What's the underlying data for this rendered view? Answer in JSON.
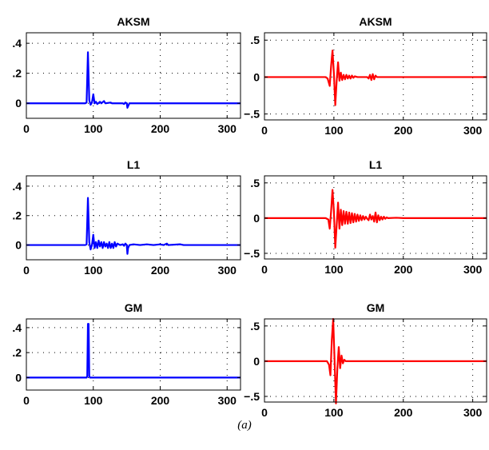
{
  "caption": "(a)",
  "chart_data": [
    {
      "type": "line",
      "title": "AKSM",
      "color": "#0000ff",
      "xlim": [
        0,
        320
      ],
      "ylim": [
        -0.1,
        0.47
      ],
      "xticks": [
        0,
        100,
        200,
        300
      ],
      "yticks": [
        0,
        0.2,
        0.4
      ],
      "points": [
        [
          0,
          0
        ],
        [
          88,
          0
        ],
        [
          90,
          0.005
        ],
        [
          92,
          0.34
        ],
        [
          94,
          0.02
        ],
        [
          96,
          -0.01
        ],
        [
          98,
          0.005
        ],
        [
          100,
          0.06
        ],
        [
          102,
          0.0
        ],
        [
          104,
          0.01
        ],
        [
          106,
          -0.005
        ],
        [
          110,
          0.01
        ],
        [
          112,
          0.0
        ],
        [
          116,
          0.015
        ],
        [
          118,
          0.0
        ],
        [
          126,
          0.005
        ],
        [
          128,
          0.0
        ],
        [
          144,
          0.0
        ],
        [
          146,
          -0.005
        ],
        [
          148,
          0.005
        ],
        [
          150,
          0.0
        ],
        [
          151,
          -0.03
        ],
        [
          153,
          -0.01
        ],
        [
          154,
          0.0
        ],
        [
          320,
          0
        ]
      ]
    },
    {
      "type": "line",
      "title": "AKSM",
      "color": "#ff0000",
      "xlim": [
        0,
        320
      ],
      "ylim": [
        -0.58,
        0.6
      ],
      "xticks": [
        0,
        100,
        200,
        300
      ],
      "yticks": [
        -0.5,
        0,
        0.5
      ],
      "points": [
        [
          0,
          0
        ],
        [
          88,
          0
        ],
        [
          91,
          -0.02
        ],
        [
          94,
          -0.12
        ],
        [
          96,
          0.15
        ],
        [
          98,
          0.36
        ],
        [
          100,
          0.05
        ],
        [
          102,
          -0.38
        ],
        [
          104,
          -0.05
        ],
        [
          106,
          0.2
        ],
        [
          108,
          -0.05
        ],
        [
          110,
          0.06
        ],
        [
          112,
          -0.04
        ],
        [
          114,
          0.03
        ],
        [
          116,
          -0.03
        ],
        [
          118,
          0.03
        ],
        [
          120,
          -0.02
        ],
        [
          122,
          0.02
        ],
        [
          124,
          -0.02
        ],
        [
          126,
          0.02
        ],
        [
          128,
          -0.01
        ],
        [
          130,
          0.01
        ],
        [
          134,
          0.0
        ],
        [
          148,
          0.0
        ],
        [
          150,
          -0.02
        ],
        [
          152,
          0.03
        ],
        [
          154,
          -0.04
        ],
        [
          156,
          0.04
        ],
        [
          158,
          -0.03
        ],
        [
          160,
          0.02
        ],
        [
          162,
          0.0
        ],
        [
          320,
          0
        ]
      ]
    },
    {
      "type": "line",
      "title": "L1",
      "color": "#0000ff",
      "xlim": [
        0,
        320
      ],
      "ylim": [
        -0.1,
        0.47
      ],
      "xticks": [
        0,
        100,
        200,
        300
      ],
      "yticks": [
        0,
        0.2,
        0.4
      ],
      "points": [
        [
          0,
          0
        ],
        [
          88,
          0
        ],
        [
          90,
          0.005
        ],
        [
          92,
          0.32
        ],
        [
          94,
          0.02
        ],
        [
          96,
          -0.03
        ],
        [
          98,
          0.0
        ],
        [
          100,
          0.07
        ],
        [
          102,
          -0.02
        ],
        [
          104,
          0.02
        ],
        [
          106,
          -0.02
        ],
        [
          108,
          0.03
        ],
        [
          110,
          -0.01
        ],
        [
          112,
          0.02
        ],
        [
          114,
          -0.02
        ],
        [
          116,
          0.02
        ],
        [
          118,
          -0.01
        ],
        [
          120,
          0.01
        ],
        [
          122,
          -0.02
        ],
        [
          124,
          0.02
        ],
        [
          126,
          -0.02
        ],
        [
          128,
          0.01
        ],
        [
          130,
          -0.02
        ],
        [
          132,
          0.02
        ],
        [
          134,
          -0.01
        ],
        [
          136,
          0.01
        ],
        [
          140,
          0.0
        ],
        [
          144,
          0.005
        ],
        [
          146,
          -0.005
        ],
        [
          148,
          0.01
        ],
        [
          150,
          0.0
        ],
        [
          151,
          -0.06
        ],
        [
          152,
          -0.02
        ],
        [
          154,
          0.0
        ],
        [
          160,
          0.005
        ],
        [
          170,
          0.0
        ],
        [
          180,
          0.005
        ],
        [
          190,
          0.0
        ],
        [
          200,
          0.005
        ],
        [
          205,
          0.0
        ],
        [
          210,
          0.01
        ],
        [
          212,
          0.0
        ],
        [
          230,
          0.005
        ],
        [
          235,
          0.0
        ],
        [
          320,
          0
        ]
      ]
    },
    {
      "type": "line",
      "title": "L1",
      "color": "#ff0000",
      "xlim": [
        0,
        320
      ],
      "ylim": [
        -0.58,
        0.6
      ],
      "xticks": [
        0,
        100,
        200,
        300
      ],
      "yticks": [
        -0.5,
        0,
        0.5
      ],
      "points": [
        [
          0,
          0
        ],
        [
          88,
          0
        ],
        [
          92,
          -0.02
        ],
        [
          94,
          -0.15
        ],
        [
          96,
          0.1
        ],
        [
          98,
          0.4
        ],
        [
          100,
          0.1
        ],
        [
          102,
          -0.42
        ],
        [
          104,
          -0.1
        ],
        [
          106,
          0.22
        ],
        [
          108,
          -0.15
        ],
        [
          110,
          0.12
        ],
        [
          112,
          -0.1
        ],
        [
          114,
          0.1
        ],
        [
          116,
          -0.08
        ],
        [
          118,
          0.09
        ],
        [
          120,
          -0.08
        ],
        [
          122,
          0.08
        ],
        [
          124,
          -0.07
        ],
        [
          126,
          0.07
        ],
        [
          128,
          -0.06
        ],
        [
          130,
          0.06
        ],
        [
          132,
          -0.05
        ],
        [
          134,
          0.05
        ],
        [
          136,
          -0.04
        ],
        [
          138,
          0.04
        ],
        [
          140,
          -0.03
        ],
        [
          142,
          0.03
        ],
        [
          144,
          -0.02
        ],
        [
          146,
          0.02
        ],
        [
          148,
          -0.01
        ],
        [
          150,
          -0.03
        ],
        [
          152,
          0.05
        ],
        [
          154,
          -0.02
        ],
        [
          156,
          0.03
        ],
        [
          158,
          -0.05
        ],
        [
          160,
          0.08
        ],
        [
          162,
          -0.06
        ],
        [
          164,
          0.04
        ],
        [
          166,
          -0.03
        ],
        [
          168,
          0.02
        ],
        [
          170,
          -0.02
        ],
        [
          172,
          0.02
        ],
        [
          174,
          -0.01
        ],
        [
          176,
          0.01
        ],
        [
          178,
          0.0
        ],
        [
          190,
          0.005
        ],
        [
          200,
          0.0
        ],
        [
          320,
          0
        ]
      ]
    },
    {
      "type": "line",
      "title": "GM",
      "color": "#0000ff",
      "xlim": [
        0,
        320
      ],
      "ylim": [
        -0.1,
        0.47
      ],
      "xticks": [
        0,
        100,
        200,
        300
      ],
      "yticks": [
        0,
        0.2,
        0.4
      ],
      "points": [
        [
          0,
          0
        ],
        [
          90,
          0
        ],
        [
          91,
          0.01
        ],
        [
          92,
          0.43
        ],
        [
          93,
          0.43
        ],
        [
          94,
          0.01
        ],
        [
          95,
          0
        ],
        [
          320,
          0
        ]
      ]
    },
    {
      "type": "line",
      "title": "GM",
      "color": "#ff0000",
      "xlim": [
        0,
        320
      ],
      "ylim": [
        -0.58,
        0.6
      ],
      "xticks": [
        0,
        100,
        200,
        300
      ],
      "yticks": [
        -0.5,
        0,
        0.5
      ],
      "points": [
        [
          0,
          0
        ],
        [
          90,
          0
        ],
        [
          93,
          -0.05
        ],
        [
          95,
          -0.2
        ],
        [
          97,
          0.3
        ],
        [
          99,
          0.6
        ],
        [
          101,
          0.0
        ],
        [
          103,
          -0.6
        ],
        [
          105,
          -0.1
        ],
        [
          107,
          0.2
        ],
        [
          109,
          -0.1
        ],
        [
          111,
          0.08
        ],
        [
          113,
          -0.03
        ],
        [
          115,
          0.02
        ],
        [
          117,
          0.0
        ],
        [
          320,
          0
        ]
      ]
    }
  ]
}
